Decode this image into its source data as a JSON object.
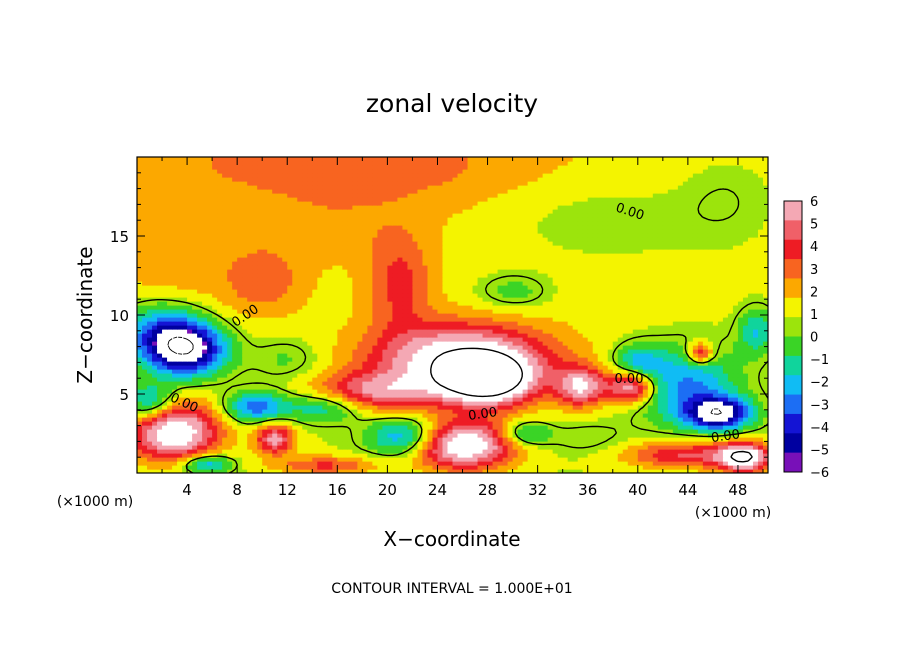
{
  "chart_data": {
    "type": "heatmap",
    "title": "zonal velocity",
    "xlabel": "X−coordinate",
    "ylabel": "Z−coordinate",
    "x_unit": "(×1000 m)",
    "x_unit_right": "(×1000 m)",
    "xlim": [
      0,
      50.4
    ],
    "ylim": [
      0,
      20
    ],
    "x_ticks": [
      4,
      8,
      12,
      16,
      20,
      24,
      28,
      32,
      36,
      40,
      44,
      48
    ],
    "y_ticks": [
      5,
      10,
      15
    ],
    "colorbar": {
      "ticks": [
        6,
        5,
        4,
        3,
        2,
        1,
        0,
        -1,
        -2,
        -3,
        -4,
        -5,
        -6
      ],
      "tick_labels": [
        "6",
        "5",
        "4",
        "3",
        "2",
        "1",
        "0",
        "−1",
        "−2",
        "−3",
        "−4",
        "−5",
        "−6"
      ],
      "colors": [
        "#f4a8b4",
        "#f06068",
        "#ee1c24",
        "#f86420",
        "#fca800",
        "#f4f400",
        "#9ce40c",
        "#3ad426",
        "#10d49c",
        "#10bcf4",
        "#1c6ef4",
        "#1414d4",
        "#0000a0",
        "#7810b8"
      ]
    },
    "contour_labels": [
      {
        "text": "0.00",
        "x": 39.4,
        "z": 16.6,
        "angle": 18
      },
      {
        "text": "0.00",
        "x": 8.6,
        "z": 10.0,
        "angle": -34
      },
      {
        "text": "0.00",
        "x": 3.8,
        "z": 4.5,
        "angle": 25
      },
      {
        "text": "0.00",
        "x": 27.6,
        "z": 3.8,
        "angle": -8
      },
      {
        "text": "0.00",
        "x": 39.3,
        "z": 6.0,
        "angle": 0
      },
      {
        "text": "0.00",
        "x": 47.0,
        "z": 2.4,
        "angle": -8
      }
    ],
    "field": {
      "base": [
        {
          "x": 0,
          "z": 20,
          "v": 1.8
        },
        {
          "x": 50.4,
          "z": 20,
          "v": 1.0
        },
        {
          "x": 0,
          "z": 0,
          "v": 0.4
        },
        {
          "x": 50.4,
          "z": 0,
          "v": 0.4
        }
      ],
      "blobs": [
        {
          "x": 18,
          "z": 19.5,
          "v": 1.6,
          "rx": 12,
          "rz": 2.5
        },
        {
          "x": 3,
          "z": 12,
          "v": 0.8,
          "rx": 4,
          "rz": 5
        },
        {
          "x": 10,
          "z": 12.2,
          "v": 2.0,
          "rx": 3,
          "rz": 2
        },
        {
          "x": 16,
          "z": 15.5,
          "v": 0.7,
          "rx": 6,
          "rz": 2
        },
        {
          "x": 21,
          "z": 12,
          "v": 2.6,
          "rx": 2.5,
          "rz": 3
        },
        {
          "x": 37,
          "z": 16,
          "v": -1.0,
          "rx": 8,
          "rz": 2.5
        },
        {
          "x": 47,
          "z": 17.5,
          "v": -0.9,
          "rx": 4,
          "rz": 3
        },
        {
          "x": 30,
          "z": 11.5,
          "v": -1.8,
          "rx": 3,
          "rz": 1.2
        },
        {
          "x": 2,
          "z": 9,
          "v": -4.5,
          "rx": 3.5,
          "rz": 2
        },
        {
          "x": 4,
          "z": 7.8,
          "v": -7.5,
          "rx": 3.2,
          "rz": 1.7
        },
        {
          "x": 12,
          "z": 7.2,
          "v": -1.5,
          "rx": 3,
          "rz": 1.5
        },
        {
          "x": 26,
          "z": 7.2,
          "v": 7.0,
          "rx": 7,
          "rz": 2.2
        },
        {
          "x": 28,
          "z": 5.8,
          "v": 7.5,
          "rx": 3.5,
          "rz": 1.5
        },
        {
          "x": 19,
          "z": 5.2,
          "v": 4.0,
          "rx": 5,
          "rz": 1.2
        },
        {
          "x": 35.5,
          "z": 5.5,
          "v": 5.5,
          "rx": 2,
          "rz": 1.2
        },
        {
          "x": 39.5,
          "z": 5.5,
          "v": 6.0,
          "rx": 1.8,
          "rz": 1.0
        },
        {
          "x": 45,
          "z": 7.6,
          "v": 4.5,
          "rx": 1,
          "rz": 0.7
        },
        {
          "x": 44,
          "z": 5.5,
          "v": -4.0,
          "rx": 4,
          "rz": 2.5
        },
        {
          "x": 46.5,
          "z": 3.8,
          "v": -7.0,
          "rx": 2.5,
          "rz": 1.0
        },
        {
          "x": 40,
          "z": 7,
          "v": -3.0,
          "rx": 2,
          "rz": 1.2
        },
        {
          "x": 3,
          "z": 2.6,
          "v": 7.0,
          "rx": 3.5,
          "rz": 1.8
        },
        {
          "x": 1,
          "z": 4.5,
          "v": -4.0,
          "rx": 2,
          "rz": 1.2
        },
        {
          "x": 9.5,
          "z": 4.2,
          "v": -4.5,
          "rx": 2.5,
          "rz": 1.0
        },
        {
          "x": 15,
          "z": 4.2,
          "v": -3.0,
          "rx": 3,
          "rz": 1.0
        },
        {
          "x": 11,
          "z": 2.2,
          "v": 5.0,
          "rx": 1.5,
          "rz": 1.0
        },
        {
          "x": 21.5,
          "z": 2.3,
          "v": -4.5,
          "rx": 3,
          "rz": 1.2
        },
        {
          "x": 26,
          "z": 1.8,
          "v": 7.5,
          "rx": 4,
          "rz": 1.5
        },
        {
          "x": 31,
          "z": 2.5,
          "v": -3.0,
          "rx": 2,
          "rz": 0.8
        },
        {
          "x": 36,
          "z": 2.2,
          "v": -1.0,
          "rx": 3,
          "rz": 1.0
        },
        {
          "x": 44,
          "z": 1.2,
          "v": 4.0,
          "rx": 5,
          "rz": 0.9
        },
        {
          "x": 48.5,
          "z": 1.0,
          "v": 7.0,
          "rx": 2,
          "rz": 0.9
        },
        {
          "x": 5.5,
          "z": 0.6,
          "v": -4.0,
          "rx": 2,
          "rz": 0.6
        },
        {
          "x": 15,
          "z": 0.5,
          "v": 3.0,
          "rx": 4,
          "rz": 0.6
        },
        {
          "x": 49.5,
          "z": 9,
          "v": -3.0,
          "rx": 1.5,
          "rz": 1.5
        }
      ]
    }
  },
  "footer": {
    "contour_interval": "CONTOUR INTERVAL = 1.000E+01"
  }
}
